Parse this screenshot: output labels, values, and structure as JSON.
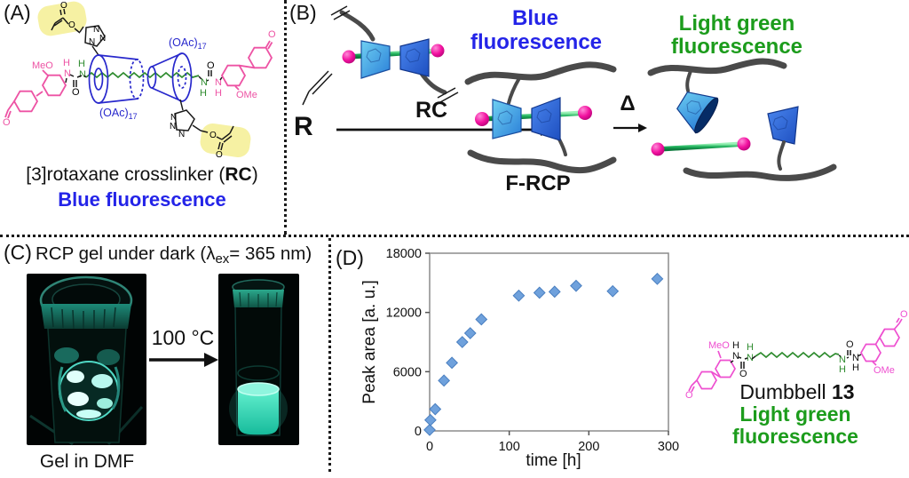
{
  "figure": {
    "background": "#ffffff",
    "divider_style": "dotted"
  },
  "sym": {
    "N": "N",
    "H": "H",
    "O": "O",
    "MeO": "MeO",
    "OMe": "OMe",
    "OAc": "(OAc)",
    "sub17": "17"
  },
  "panels": {
    "a": {
      "label": "(A)",
      "caption_pre": "[3]rotaxane crosslinker (",
      "caption_bold": "RC",
      "caption_post": ")",
      "fluorescence": "Blue fluorescence"
    },
    "b": {
      "label": "(B)",
      "monomer": "R",
      "arrow_label": "RC",
      "delta": "Δ",
      "product": "F-RCP",
      "blue_line1": "Blue",
      "blue_line2": "fluorescence",
      "green_line1": "Light green",
      "green_line2": "fluorescence"
    },
    "c": {
      "label": "(C)",
      "title_pre": "RCP gel under dark (λ",
      "title_sub": "ex",
      "title_post": "= 365 nm)",
      "arrow_label": "100 °C",
      "caption": "Gel in DMF"
    },
    "d": {
      "label": "(D)",
      "dumbbell_pre": "Dumbbell ",
      "dumbbell_num": "13",
      "green_line1": "Light green",
      "green_line2": "fluorescence"
    }
  },
  "chart_data": {
    "type": "scatter",
    "x": [
      0,
      1,
      7,
      18,
      28,
      41,
      51,
      65,
      112,
      138,
      157,
      184,
      230,
      286
    ],
    "y": [
      100,
      1100,
      2200,
      5100,
      6900,
      9000,
      9900,
      11300,
      13700,
      14000,
      14100,
      14700,
      14150,
      15400
    ],
    "xlabel": "time [h]",
    "ylabel": "Peak area [a. u.]",
    "xlim": [
      0,
      300
    ],
    "ylim": [
      0,
      18000
    ],
    "xticks": [
      0,
      100,
      200,
      300
    ],
    "yticks": [
      0,
      6000,
      12000,
      18000
    ],
    "grid": false,
    "legend": false,
    "marker": "diamond",
    "marker_color": "#6FA1DC",
    "marker_edge": "#4A7FC0",
    "frame_color": "#8C8C8C"
  },
  "colors": {
    "blue_text": "#2424E8",
    "green_text": "#1C9C1C",
    "pink_struct": "#ED53A4",
    "magenta_dumbbell": "#EE4FD0",
    "blue_cd": "#2828CC",
    "green_axle": "#2E8B2E",
    "yellow_highlight": "#F6F1A3",
    "chain_grey": "#4A4A4A",
    "cone_light": "#4FB3EA",
    "cone_dark": "#2E66D8",
    "ball_pink": "#F2119F",
    "gel_glow": "#5FE8CE"
  }
}
